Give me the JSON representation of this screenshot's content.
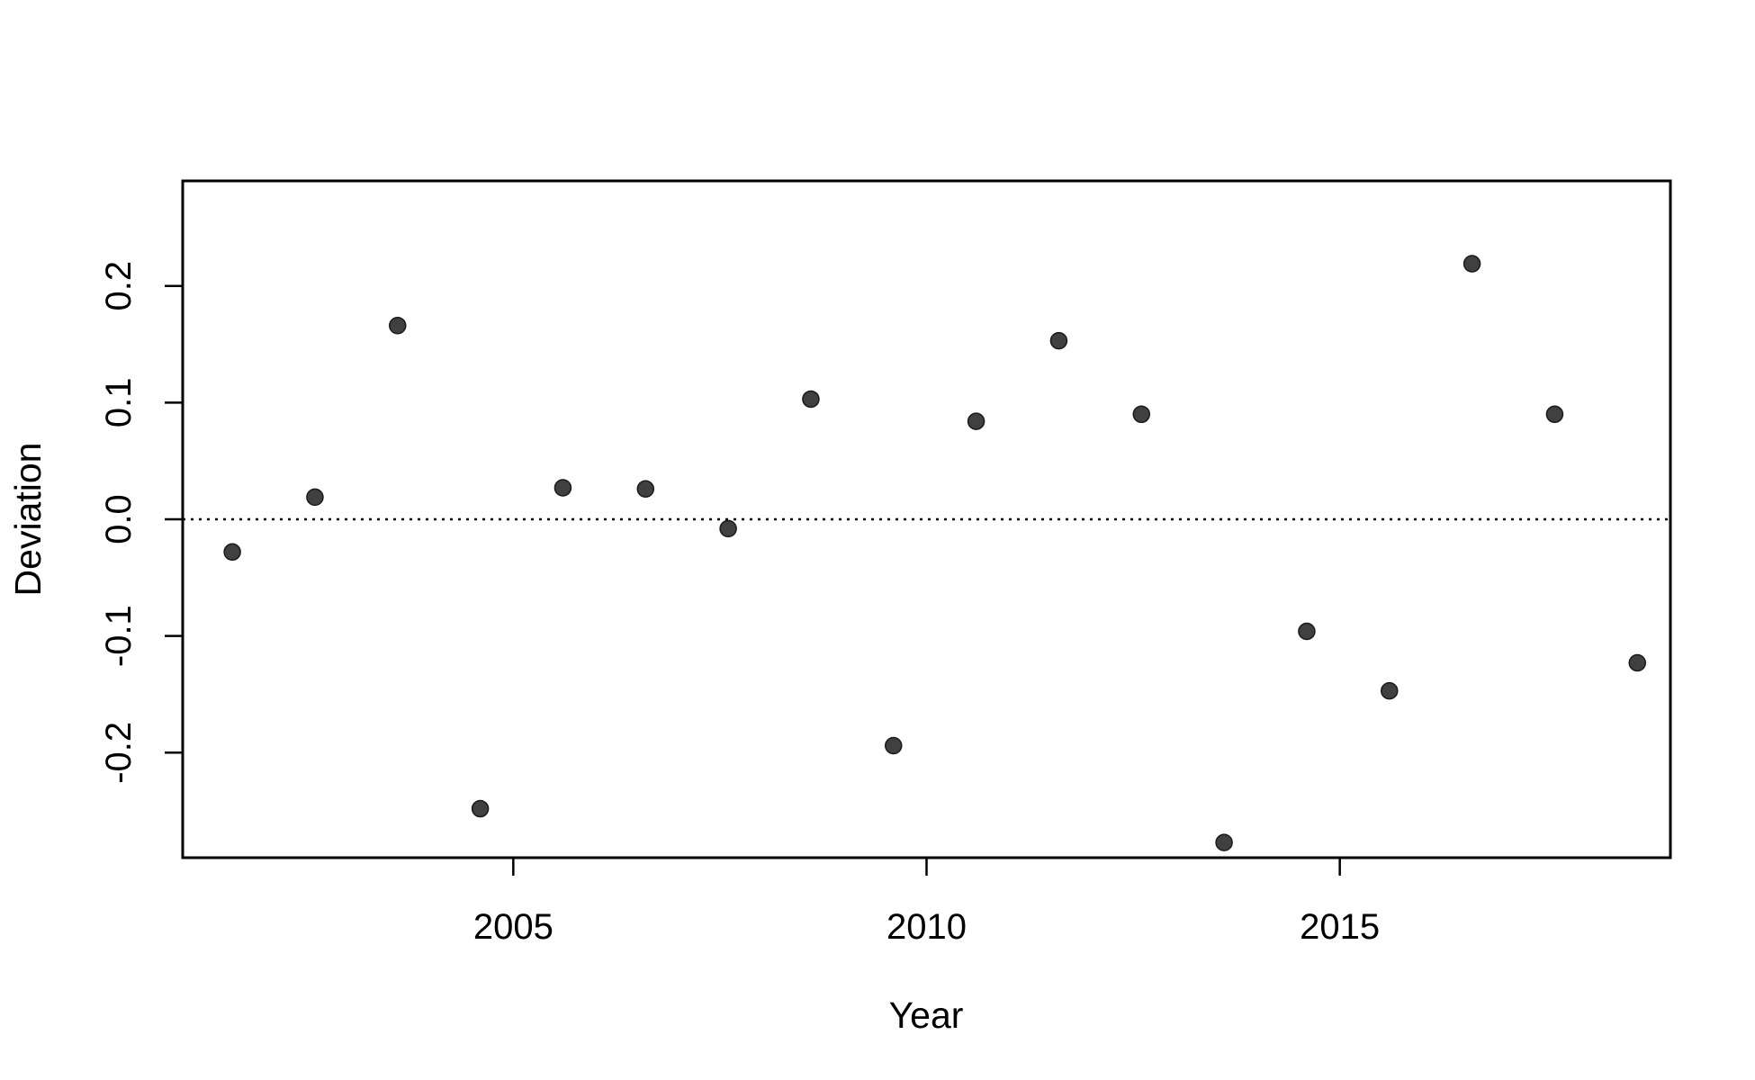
{
  "chart_data": {
    "type": "scatter",
    "title": "",
    "xlabel": "Year",
    "ylabel": "Deviation",
    "xlim": [
      2001,
      2019
    ],
    "ylim": [
      -0.29,
      0.29
    ],
    "x_ticks": [
      2005,
      2010,
      2015
    ],
    "y_ticks": [
      -0.2,
      -0.1,
      0.0,
      0.1,
      0.2
    ],
    "y_tick_labels": [
      "-0.2",
      "-0.1",
      "0.0",
      "0.1",
      "0.2"
    ],
    "reference_line": {
      "y": 0,
      "style": "dotted"
    },
    "grid": false,
    "legend": "none",
    "point_color": "#404040",
    "x": [
      2001.6,
      2002.6,
      2003.6,
      2004.6,
      2005.6,
      2006.6,
      2007.6,
      2008.6,
      2009.6,
      2010.6,
      2011.6,
      2012.6,
      2013.6,
      2014.6,
      2015.6,
      2016.6,
      2017.6,
      2018.6
    ],
    "y": [
      -0.028,
      0.019,
      0.166,
      -0.248,
      0.027,
      0.026,
      -0.008,
      0.103,
      -0.194,
      0.084,
      0.153,
      0.09,
      -0.277,
      -0.096,
      -0.147,
      0.219,
      0.09,
      -0.123
    ]
  }
}
